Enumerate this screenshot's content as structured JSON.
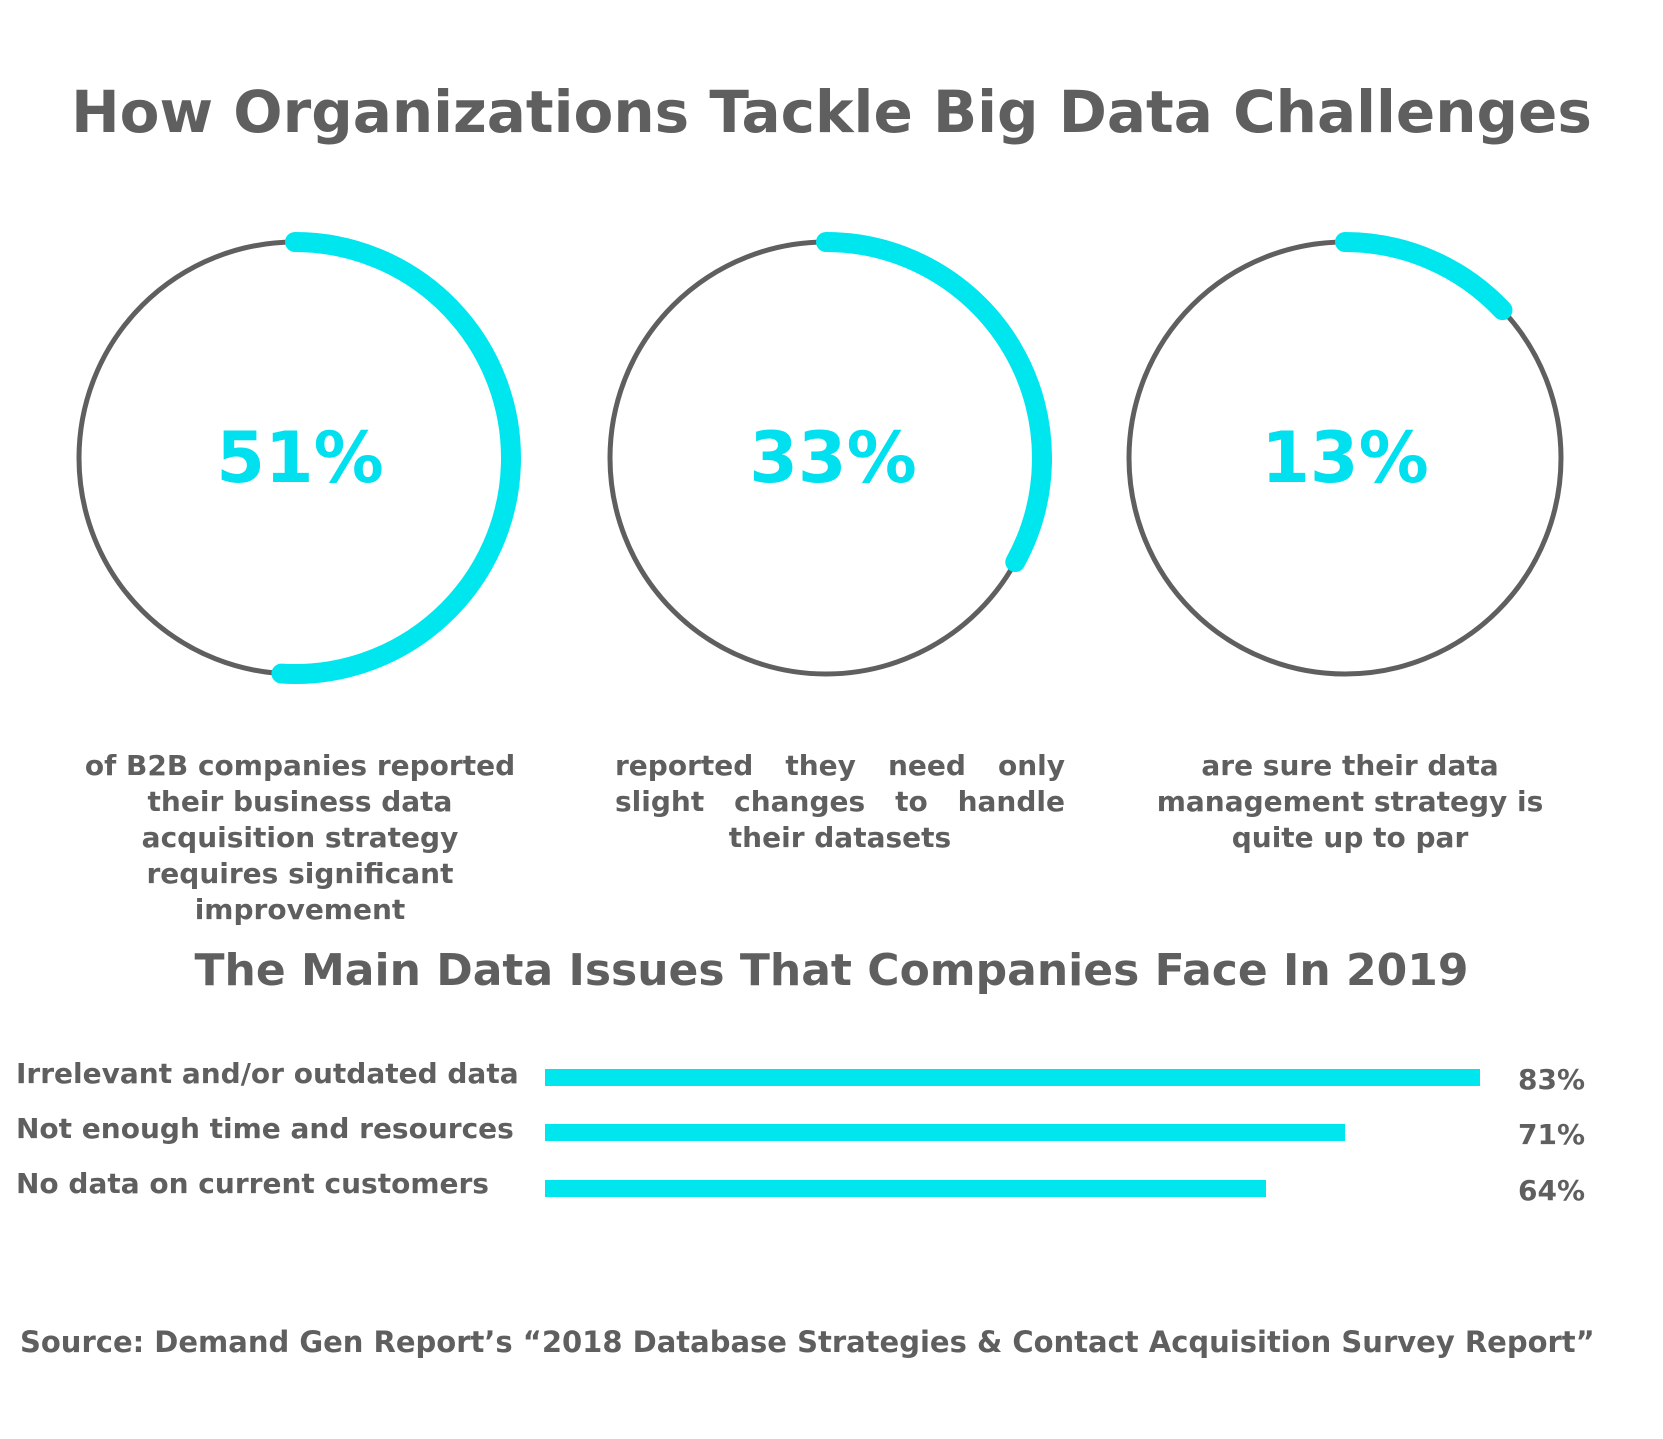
{
  "title": "How Organizations Tackle Big Data Challenges",
  "colors": {
    "accent": "#00e6ef",
    "ring": "#5f5f5f",
    "text": "#5f5f5f"
  },
  "chart_data": [
    {
      "type": "pie",
      "title": "How Organizations Tackle Big Data Challenges",
      "items": [
        {
          "value": 51,
          "label": "51%",
          "description": "of B2B companies reported their business data acquisition strategy requires significant improvement"
        },
        {
          "value": 33,
          "label": "33%",
          "description": "reported they need only slight changes to handle their datasets"
        },
        {
          "value": 13,
          "label": "13%",
          "description": "are sure their data management strategy is quite up to par"
        }
      ]
    },
    {
      "type": "bar",
      "title": "The Main Data Issues That Companies Face In 2019",
      "categories": [
        "Irrelevant and/or outdated data",
        "Not enough time and resources",
        "No data on current customers"
      ],
      "values": [
        83,
        71,
        64
      ],
      "value_labels": [
        "83%",
        "71%",
        "64%"
      ],
      "xlabel": "",
      "ylabel": "",
      "xlim": [
        0,
        100
      ]
    }
  ],
  "source": "Source: Demand Gen Report’s “2018 Database Strategies & Contact Acquisition Survey Report”"
}
